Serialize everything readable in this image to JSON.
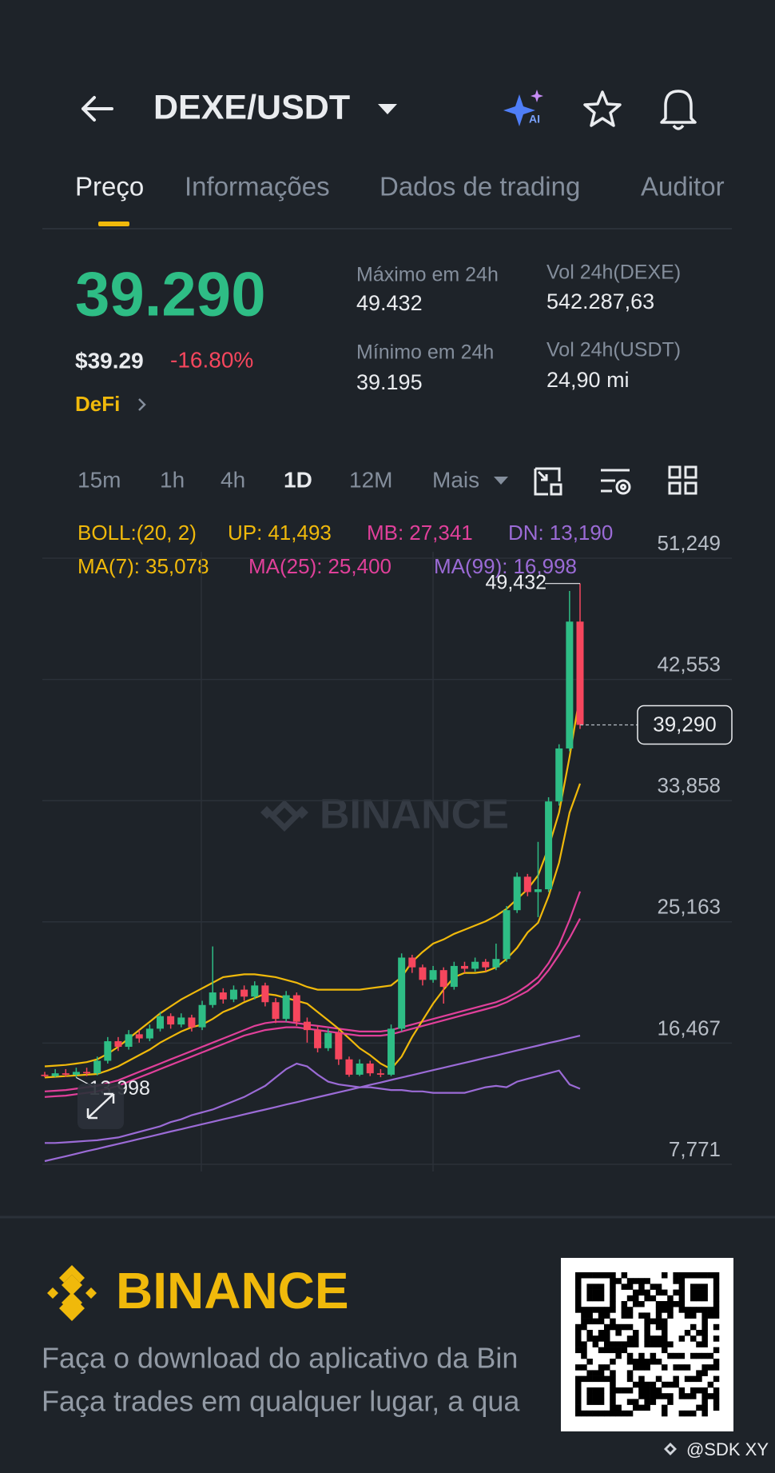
{
  "header": {
    "pair": "DEXE/USDT"
  },
  "tabs": [
    "Preço",
    "Informações",
    "Dados de trading",
    "Auditor"
  ],
  "price": {
    "last": "39.290",
    "usd": "$39.29",
    "change": "-16.80%",
    "tag": "DeFi"
  },
  "stats": [
    {
      "label": "Máximo em 24h",
      "value": "49.432"
    },
    {
      "label": "Vol 24h(DEXE)",
      "value": "542.287,63"
    },
    {
      "label": "Mínimo em 24h",
      "value": "39.195"
    },
    {
      "label": "Vol 24h(USDT)",
      "value": "24,90 mi"
    }
  ],
  "timeframes": [
    "15m",
    "1h",
    "4h",
    "1D",
    "12M",
    "Mais"
  ],
  "watermark": "BINANCE",
  "chart_data": {
    "type": "candlestick",
    "boll_label": "BOLL:(20, 2)",
    "open": [
      14200,
      14100,
      14300,
      14200,
      14400,
      14300,
      15200,
      16600,
      16200,
      17100,
      16800,
      17500,
      18400,
      17800,
      18300,
      17600,
      19200,
      20100,
      19600,
      20300,
      19800,
      20600,
      19400,
      18200,
      19900,
      18000,
      17400,
      16100,
      17200,
      15300,
      14200,
      15000,
      14300,
      14200,
      17500,
      22600,
      21900,
      21000,
      21700,
      20500,
      22000,
      21800,
      22300,
      21900,
      22500,
      26000,
      28400,
      27300,
      27500,
      33800,
      37600,
      46700
    ],
    "high": [
      14400,
      14600,
      14600,
      14700,
      14700,
      15500,
      16900,
      16900,
      17400,
      17400,
      17800,
      18700,
      18600,
      18600,
      18500,
      19500,
      23400,
      20400,
      20600,
      20600,
      20900,
      20800,
      19700,
      20200,
      20100,
      18300,
      17700,
      17500,
      17400,
      15500,
      15300,
      15200,
      14600,
      17800,
      22900,
      22800,
      22100,
      22000,
      21900,
      22300,
      22300,
      22600,
      22500,
      23600,
      26300,
      28700,
      28600,
      30900,
      34100,
      37900,
      48900,
      49432
    ],
    "low": [
      14020,
      14030,
      14050,
      13998,
      14100,
      14150,
      15000,
      15900,
      16000,
      16500,
      16600,
      17300,
      17500,
      17600,
      17300,
      17400,
      19000,
      19300,
      19400,
      19500,
      19600,
      19100,
      17900,
      18000,
      17700,
      16500,
      15800,
      15900,
      14900,
      14050,
      14100,
      14100,
      14020,
      14100,
      17300,
      21500,
      20600,
      20800,
      19300,
      20300,
      21500,
      21600,
      21600,
      21700,
      22300,
      25800,
      27000,
      25500,
      27300,
      33500,
      37400,
      39000
    ],
    "close": [
      14100,
      14300,
      14200,
      14400,
      14300,
      15200,
      16600,
      16200,
      17100,
      16800,
      17500,
      18400,
      17800,
      18300,
      17600,
      19200,
      20100,
      19600,
      20300,
      19800,
      20600,
      19400,
      18200,
      19900,
      18000,
      17400,
      16100,
      17200,
      15300,
      14200,
      15000,
      14300,
      14200,
      17500,
      22600,
      21900,
      21000,
      21700,
      20500,
      22000,
      21800,
      22300,
      21900,
      22500,
      26000,
      28400,
      27300,
      27500,
      33800,
      37600,
      46700,
      39290
    ],
    "up_color": "#2ebd85",
    "down_color": "#f6465d",
    "series": [
      {
        "name": "UP:",
        "group": "BOLL",
        "color": "#f0b90b",
        "last_label": "41,493",
        "values": [
          14800,
          14850,
          14900,
          15000,
          15100,
          15300,
          15700,
          16200,
          16800,
          17400,
          18000,
          18600,
          19100,
          19600,
          20000,
          20400,
          20800,
          21200,
          21300,
          21400,
          21400,
          21300,
          21200,
          21000,
          20800,
          20500,
          20300,
          20300,
          20300,
          20300,
          20300,
          20400,
          20500,
          20600,
          21200,
          22300,
          23000,
          23600,
          23900,
          24300,
          24600,
          24900,
          25200,
          25600,
          26100,
          26800,
          27500,
          28500,
          30500,
          33000,
          37000,
          41493
        ]
      },
      {
        "name": "MB:",
        "group": "BOLL",
        "color": "#e0409a",
        "last_label": "27,341",
        "values": [
          13000,
          13050,
          13100,
          13200,
          13300,
          13400,
          13600,
          13800,
          14100,
          14400,
          14700,
          15000,
          15300,
          15600,
          15900,
          16200,
          16500,
          16800,
          17100,
          17400,
          17700,
          17900,
          18000,
          18000,
          17900,
          17800,
          17700,
          17600,
          17500,
          17400,
          17300,
          17300,
          17300,
          17400,
          17600,
          17800,
          18000,
          18200,
          18400,
          18600,
          18800,
          19000,
          19200,
          19400,
          19700,
          20100,
          20600,
          21200,
          22200,
          23500,
          25300,
          27341
        ]
      },
      {
        "name": "DN:",
        "group": "BOLL",
        "color": "#9b6bd6",
        "last_label": "13,190",
        "values": [
          9300,
          9300,
          9350,
          9400,
          9450,
          9500,
          9600,
          9700,
          9900,
          10100,
          10300,
          10500,
          10800,
          11000,
          11300,
          11500,
          11700,
          12000,
          12300,
          12600,
          13000,
          13400,
          14000,
          14600,
          15000,
          14800,
          14200,
          13700,
          13500,
          13400,
          13300,
          13300,
          13200,
          13100,
          13100,
          13000,
          13000,
          12900,
          12900,
          12900,
          12900,
          13100,
          13300,
          13400,
          13300,
          13700,
          13900,
          14100,
          14300,
          14500,
          13500,
          13190
        ]
      },
      {
        "name": "MA(7):",
        "group": "MA",
        "color": "#f0b90b",
        "last_label": "35,078",
        "values": [
          14000,
          14050,
          14100,
          14150,
          14200,
          14250,
          14500,
          14800,
          15200,
          15600,
          16000,
          16500,
          16900,
          17300,
          17600,
          17800,
          18200,
          18700,
          19000,
          19400,
          19700,
          20000,
          19900,
          19700,
          19500,
          19300,
          18700,
          18100,
          17500,
          16800,
          16100,
          15600,
          15000,
          14600,
          15500,
          16900,
          18100,
          19300,
          20300,
          21200,
          21500,
          21500,
          21600,
          21900,
          22500,
          23300,
          24400,
          25100,
          27000,
          29400,
          33000,
          35078
        ]
      },
      {
        "name": "MA(25):",
        "group": "MA",
        "color": "#e0409a",
        "last_label": "25,400",
        "values": [
          12600,
          12650,
          12700,
          12800,
          12900,
          13000,
          13200,
          13400,
          13700,
          14000,
          14300,
          14600,
          14900,
          15200,
          15500,
          15800,
          16100,
          16400,
          16700,
          17000,
          17200,
          17400,
          17500,
          17600,
          17600,
          17500,
          17400,
          17300,
          17200,
          17100,
          17000,
          17000,
          17000,
          17100,
          17300,
          17500,
          17700,
          17900,
          18100,
          18300,
          18500,
          18700,
          18900,
          19100,
          19400,
          19800,
          20200,
          20800,
          21700,
          22800,
          24000,
          25400
        ]
      },
      {
        "name": "MA(99):",
        "group": "MA",
        "color": "#9b6bd6",
        "last_label": "16,998",
        "values": [
          8000,
          8180,
          8350,
          8530,
          8710,
          8880,
          9060,
          9240,
          9410,
          9590,
          9760,
          9940,
          10120,
          10290,
          10470,
          10650,
          10820,
          11000,
          11170,
          11350,
          11530,
          11700,
          11880,
          12060,
          12230,
          12410,
          12590,
          12760,
          12940,
          13110,
          13290,
          13470,
          13640,
          13820,
          14000,
          14170,
          14350,
          14530,
          14700,
          14880,
          15050,
          15230,
          15410,
          15580,
          15760,
          15940,
          16110,
          16290,
          16470,
          16640,
          16820,
          16998
        ]
      }
    ],
    "ylim": [
      7771,
      51249
    ],
    "yticks": [
      {
        "value": 51249,
        "label": "51,249"
      },
      {
        "value": 42553,
        "label": "42,553"
      },
      {
        "value": 33858,
        "label": "33,858"
      },
      {
        "value": 25163,
        "label": "25,163"
      },
      {
        "value": 16467,
        "label": "16,467"
      },
      {
        "value": 7771,
        "label": "7,771"
      }
    ],
    "grid": true,
    "current_price": {
      "value": 39290,
      "label": "39,290"
    },
    "high_marker": {
      "value": 49432,
      "label": "49,432"
    },
    "low_marker": {
      "value": 13998,
      "label": "13,998"
    }
  },
  "footer": {
    "brand": "BINANCE",
    "lines": [
      "Faça o download do aplicativo da Bin",
      "Faça trades em qualquer lugar, a qua"
    ],
    "credit": "@SDK XY"
  }
}
